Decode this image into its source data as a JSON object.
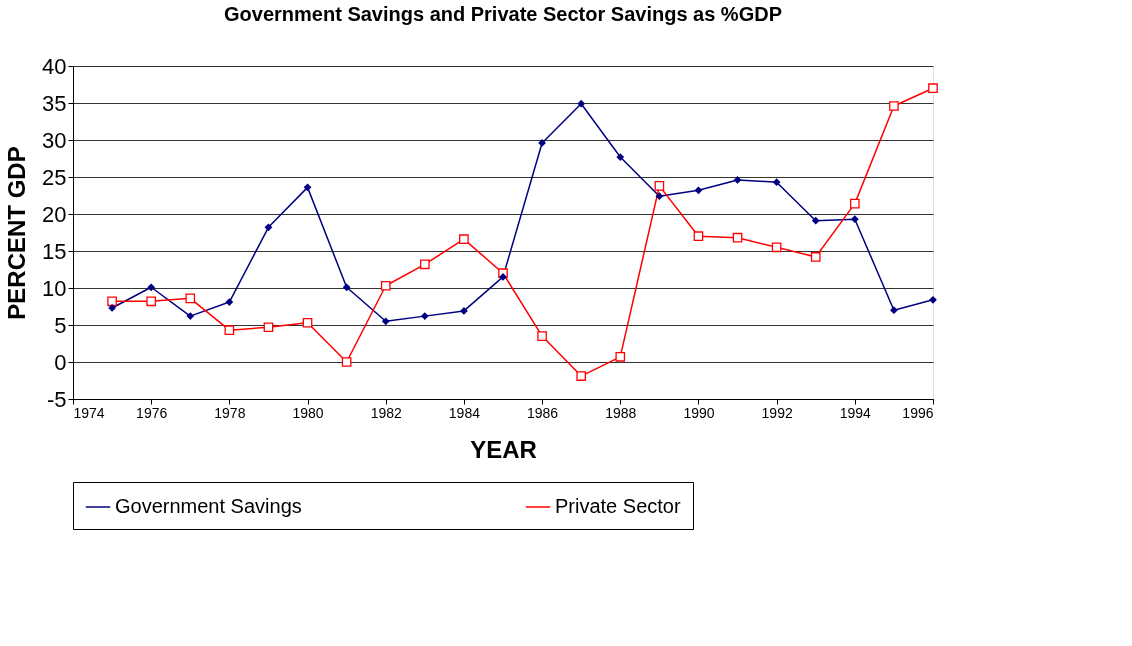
{
  "chart_data": {
    "type": "line",
    "title": "Government Savings and Private Sector Savings as %GDP",
    "xlabel": "YEAR",
    "ylabel": "PERCENT GDP",
    "x": [
      1975,
      1976,
      1977,
      1978,
      1979,
      1980,
      1981,
      1982,
      1983,
      1984,
      1985,
      1986,
      1987,
      1988,
      1989,
      1990,
      1991,
      1992,
      1993,
      1994,
      1995,
      1996
    ],
    "series": [
      {
        "name": "Government Savings",
        "color": "#000080",
        "marker": "diamond",
        "values": [
          7.3,
          10.1,
          6.2,
          8.1,
          18.2,
          23.6,
          10.1,
          5.5,
          6.2,
          6.9,
          11.5,
          29.6,
          34.9,
          27.7,
          22.4,
          23.2,
          24.6,
          24.3,
          19.1,
          19.3,
          7.0,
          8.4
        ]
      },
      {
        "name": "Private Sector",
        "color": "#ff0000",
        "marker": "square",
        "values": [
          8.2,
          8.2,
          8.6,
          4.3,
          4.7,
          5.3,
          0,
          10.3,
          13.2,
          16.6,
          12.0,
          3.5,
          -1.9,
          0.7,
          23.8,
          17.0,
          16.8,
          15.5,
          14.2,
          21.4,
          34.6,
          37.0
        ]
      }
    ],
    "xlim": [
      1974,
      1996
    ],
    "xticks": [
      1974,
      1976,
      1978,
      1980,
      1982,
      1984,
      1986,
      1988,
      1990,
      1992,
      1994,
      1996
    ],
    "ylim": [
      -5,
      40
    ],
    "yticks": [
      -5,
      0,
      5,
      10,
      15,
      20,
      25,
      30,
      35,
      40
    ],
    "grid": "y",
    "legend": "bottom",
    "line_style": "solid"
  }
}
